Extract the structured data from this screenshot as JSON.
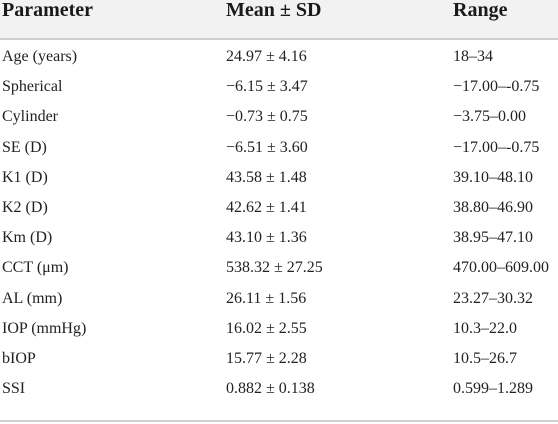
{
  "table": {
    "headers": [
      "Parameter",
      "Mean ± SD",
      "Range"
    ],
    "rows": [
      [
        "Age (years)",
        "24.97 ± 4.16",
        "18–34"
      ],
      [
        "Spherical",
        "−6.15 ± 3.47",
        "−17.00–-0.75"
      ],
      [
        "Cylinder",
        "−0.73 ± 0.75",
        "−3.75–0.00"
      ],
      [
        "SE (D)",
        "−6.51 ± 3.60",
        "−17.00–-0.75"
      ],
      [
        "K1 (D)",
        "43.58 ± 1.48",
        "39.10–48.10"
      ],
      [
        "K2 (D)",
        "42.62 ± 1.41",
        "38.80–46.90"
      ],
      [
        "Km (D)",
        "43.10 ± 1.36",
        "38.95–47.10"
      ],
      [
        "CCT (μm)",
        "538.32 ± 27.25",
        "470.00–609.00"
      ],
      [
        "AL (mm)",
        "26.11 ± 1.56",
        "23.27–30.32"
      ],
      [
        "IOP (mmHg)",
        "16.02 ± 2.55",
        "10.3–22.0"
      ],
      [
        "bIOP",
        "15.77 ± 2.28",
        "10.5–26.7"
      ],
      [
        "SSI",
        "0.882 ± 0.138",
        "0.599–1.289"
      ]
    ]
  },
  "colors": {
    "header_background": "#f2f2f2",
    "rule": "#cfcfcf",
    "text": "#222222"
  }
}
